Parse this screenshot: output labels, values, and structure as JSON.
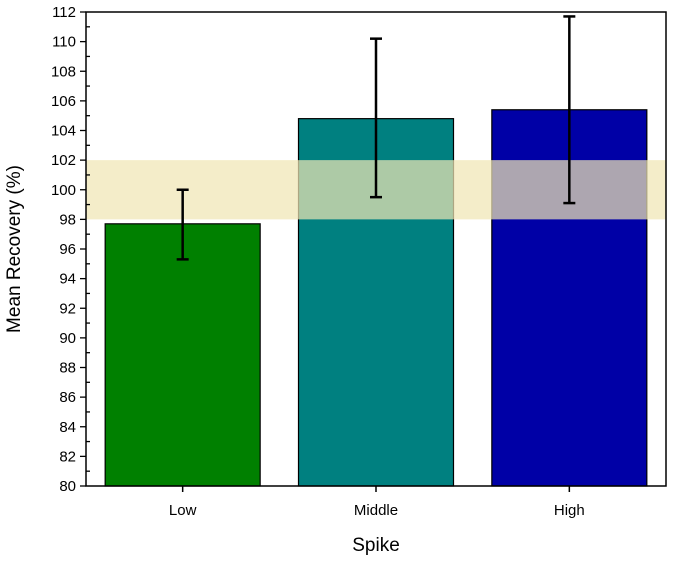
{
  "chart_data": {
    "type": "bar",
    "title": "",
    "xlabel": "Spike",
    "ylabel": "Mean Recovery (%)",
    "categories": [
      "Low",
      "Middle",
      "High"
    ],
    "values": [
      97.7,
      104.8,
      105.4
    ],
    "error_low": [
      95.3,
      99.5,
      99.1
    ],
    "error_high": [
      100.0,
      110.2,
      111.7
    ],
    "colors": [
      "#008000",
      "#008080",
      "#0000a6"
    ],
    "ylim": [
      80,
      112
    ],
    "yticks": [
      80,
      82,
      84,
      86,
      88,
      90,
      92,
      94,
      96,
      98,
      100,
      102,
      104,
      106,
      108,
      110,
      112
    ],
    "reference_band": {
      "from": 98,
      "to": 102,
      "color": "#f0e6b4"
    },
    "grid": false,
    "legend": "none"
  }
}
